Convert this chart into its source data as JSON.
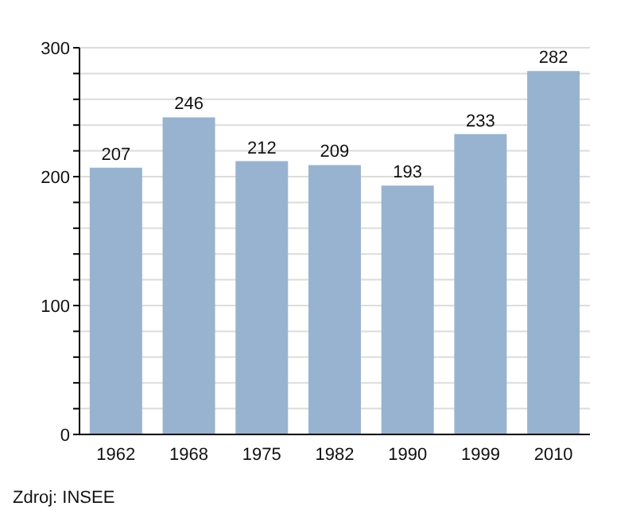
{
  "chart_data": {
    "type": "bar",
    "categories": [
      "1962",
      "1968",
      "1975",
      "1982",
      "1990",
      "1999",
      "2010"
    ],
    "values": [
      207,
      246,
      212,
      209,
      193,
      233,
      282
    ],
    "color": "#98b3cf",
    "ylim": [
      0,
      300
    ],
    "yticks": [
      0,
      {
        "value": 20,
        "label": null
      },
      {
        "value": 40,
        "label": null
      },
      {
        "value": 60,
        "label": null
      },
      {
        "value": 80,
        "label": null
      },
      100,
      {
        "value": 120,
        "label": null
      },
      {
        "value": 140,
        "label": null
      },
      {
        "value": 160,
        "label": null
      },
      {
        "value": 180,
        "label": null
      },
      200,
      {
        "value": 220,
        "label": null
      },
      {
        "value": 240,
        "label": null
      },
      {
        "value": 260,
        "label": null
      },
      {
        "value": 280,
        "label": null
      },
      300
    ],
    "grid": "y",
    "data_labels": true,
    "annotations": [
      "Zdroj: INSEE"
    ]
  }
}
